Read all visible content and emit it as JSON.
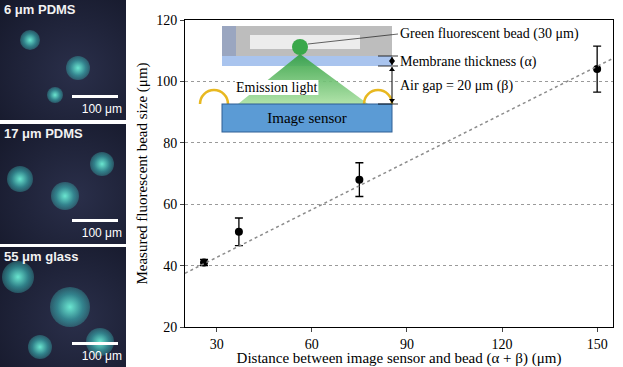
{
  "chart_data": {
    "type": "scatter",
    "x_label": "Distance between image sensor and bead (α + β) (μm)",
    "y_label": "Measured fluorescent bead size (μm)",
    "xlim": [
      20,
      155
    ],
    "xticks": [
      30,
      60,
      90,
      120,
      150
    ],
    "ylim": [
      20,
      120
    ],
    "yticks": [
      20,
      40,
      60,
      80,
      100,
      120
    ],
    "grid": "y",
    "series": [
      {
        "type": "scatter",
        "x": [
          26,
          37,
          75,
          150
        ],
        "values": [
          41,
          51,
          68,
          104
        ],
        "error": [
          1,
          4.5,
          5.5,
          7.5
        ],
        "color": "#000000",
        "marker": "circle"
      },
      {
        "type": "line",
        "x": [
          20,
          155
        ],
        "values": [
          37.5,
          107.5
        ],
        "color": "#8c8c8c",
        "line_style": "dotted"
      }
    ]
  },
  "inset": {
    "bead": "Green fluorescent bead (30 μm)",
    "membrane": "Membrane thickness (α)",
    "air_gap": "Air gap = 20 μm (β)",
    "emission": "Emission light",
    "sensor": "Image sensor"
  },
  "panels": [
    {
      "label": "6 μm PDMS",
      "scale_bar": "100 μm"
    },
    {
      "label": "17 μm PDMS",
      "scale_bar": "100 μm"
    },
    {
      "label": "55 μm glass",
      "scale_bar": "100 μm"
    }
  ]
}
